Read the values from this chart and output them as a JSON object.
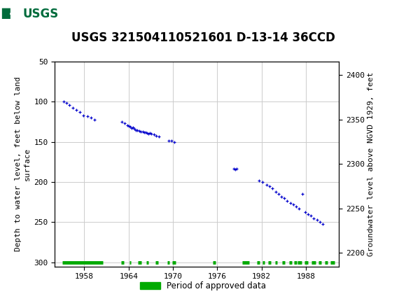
{
  "title": "USGS 321504110521601 D-13-14 36CCD",
  "header_color": "#006B3C",
  "ylabel_left": "Depth to water level, feet below land\nsurface",
  "ylabel_right": "Groundwater level above NGVD 1929, feet",
  "ylim_left_top": 50,
  "ylim_left_bottom": 305,
  "ylim_right_top": 2415,
  "ylim_right_bottom": 2185,
  "xlim": [
    1954.0,
    1992.5
  ],
  "xticks": [
    1958,
    1964,
    1970,
    1976,
    1982,
    1988
  ],
  "yticks_left": [
    50,
    100,
    150,
    200,
    250,
    300
  ],
  "yticks_right": [
    2200,
    2250,
    2300,
    2350,
    2400
  ],
  "grid_color": "#cccccc",
  "plot_bg": "#ffffff",
  "fig_bg": "#ffffff",
  "data_color": "#0000cc",
  "approved_color": "#00aa00",
  "approved_y": 300,
  "title_fontsize": 12,
  "axis_label_fontsize": 8,
  "tick_fontsize": 8,
  "legend_label": "Period of approved data",
  "data_points": [
    [
      1955.2,
      100
    ],
    [
      1955.6,
      101
    ],
    [
      1956.0,
      104
    ],
    [
      1956.4,
      107
    ],
    [
      1956.9,
      110
    ],
    [
      1957.4,
      113
    ],
    [
      1957.9,
      117
    ],
    [
      1958.4,
      118
    ],
    [
      1958.9,
      120
    ],
    [
      1959.4,
      122
    ],
    [
      1963.1,
      125
    ],
    [
      1963.5,
      127
    ],
    [
      1963.8,
      129
    ],
    [
      1964.0,
      130
    ],
    [
      1964.2,
      131
    ],
    [
      1964.4,
      133
    ],
    [
      1964.6,
      132
    ],
    [
      1964.8,
      134
    ],
    [
      1965.0,
      135
    ],
    [
      1965.2,
      135
    ],
    [
      1965.4,
      136
    ],
    [
      1965.6,
      137
    ],
    [
      1965.9,
      137
    ],
    [
      1966.1,
      138
    ],
    [
      1966.3,
      138
    ],
    [
      1966.5,
      139
    ],
    [
      1966.7,
      140
    ],
    [
      1966.9,
      139
    ],
    [
      1967.1,
      140
    ],
    [
      1967.4,
      141
    ],
    [
      1967.7,
      142
    ],
    [
      1968.1,
      143
    ],
    [
      1969.4,
      148
    ],
    [
      1969.8,
      148
    ],
    [
      1970.2,
      150
    ],
    [
      1978.2,
      183
    ],
    [
      1978.4,
      184
    ],
    [
      1978.6,
      183
    ],
    [
      1981.7,
      198
    ],
    [
      1982.1,
      200
    ],
    [
      1982.7,
      203
    ],
    [
      1983.1,
      205
    ],
    [
      1983.5,
      208
    ],
    [
      1983.9,
      212
    ],
    [
      1984.3,
      215
    ],
    [
      1984.7,
      218
    ],
    [
      1985.1,
      220
    ],
    [
      1985.5,
      223
    ],
    [
      1985.9,
      226
    ],
    [
      1986.3,
      228
    ],
    [
      1986.7,
      230
    ],
    [
      1987.1,
      233
    ],
    [
      1987.5,
      215
    ],
    [
      1987.9,
      237
    ],
    [
      1988.3,
      240
    ],
    [
      1988.7,
      242
    ],
    [
      1989.1,
      245
    ],
    [
      1989.5,
      247
    ],
    [
      1989.9,
      250
    ],
    [
      1990.3,
      252
    ]
  ],
  "approved_segments": [
    [
      1955.0,
      1960.5
    ],
    [
      1963.0,
      1963.4
    ],
    [
      1964.1,
      1964.3
    ],
    [
      1965.3,
      1965.7
    ],
    [
      1966.4,
      1966.7
    ],
    [
      1967.6,
      1968.0
    ],
    [
      1969.2,
      1969.5
    ],
    [
      1969.9,
      1970.4
    ],
    [
      1975.4,
      1975.8
    ],
    [
      1979.4,
      1980.3
    ],
    [
      1981.4,
      1981.8
    ],
    [
      1982.1,
      1982.4
    ],
    [
      1982.9,
      1983.3
    ],
    [
      1983.8,
      1984.1
    ],
    [
      1984.8,
      1985.2
    ],
    [
      1985.7,
      1986.1
    ],
    [
      1986.4,
      1986.8
    ],
    [
      1986.9,
      1987.4
    ],
    [
      1987.8,
      1988.3
    ],
    [
      1988.8,
      1989.3
    ],
    [
      1989.7,
      1990.1
    ],
    [
      1990.6,
      1991.0
    ],
    [
      1991.3,
      1991.9
    ]
  ]
}
